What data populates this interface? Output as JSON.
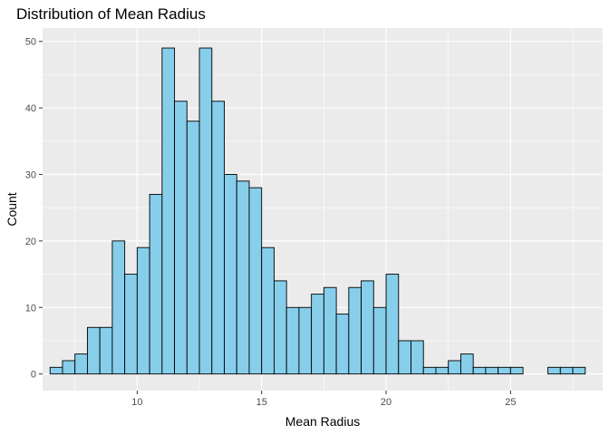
{
  "chart_data": {
    "type": "bar",
    "title": "Distribution of Mean Radius",
    "xlabel": "Mean Radius",
    "ylabel": "Count",
    "xlim": [
      6.2,
      28.7
    ],
    "ylim": [
      -2.5,
      52
    ],
    "bin_start": 6.5,
    "bin_width": 0.5,
    "values": [
      1,
      2,
      3,
      7,
      7,
      20,
      15,
      19,
      27,
      49,
      41,
      38,
      49,
      41,
      30,
      29,
      28,
      19,
      14,
      10,
      10,
      12,
      13,
      9,
      13,
      14,
      10,
      15,
      5,
      5,
      1,
      1,
      2,
      3,
      1,
      1,
      1,
      1,
      0,
      0,
      1,
      1,
      1
    ],
    "x_ticks": [
      10,
      15,
      20,
      25
    ],
    "x_tick_labels": [
      "10",
      "15",
      "20",
      "25"
    ],
    "y_ticks": [
      0,
      10,
      20,
      30,
      40,
      50
    ],
    "y_tick_labels": [
      "0",
      "10",
      "20",
      "30",
      "40",
      "50"
    ],
    "bar_fill": "#87CEEB",
    "bar_stroke": "#000000",
    "panel_background": "#EBEBEB",
    "grid": true,
    "grid_color": "#FFFFFF"
  }
}
